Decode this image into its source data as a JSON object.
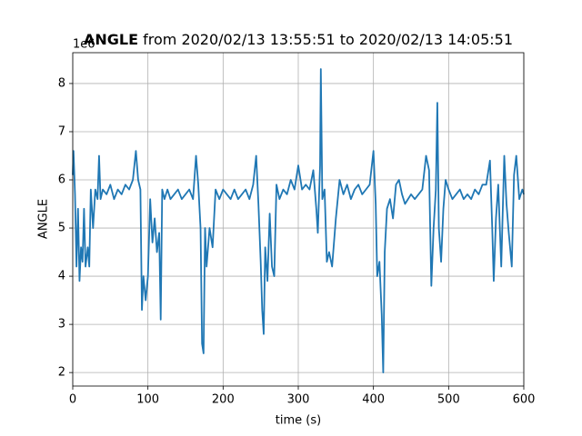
{
  "chart_data": {
    "type": "line",
    "title_bold": "ANGLE",
    "title": " from 2020/02/13 13:55:51 to 2020/02/13 14:05:51",
    "y_offset_label": "1e6",
    "xlabel": "time (s)",
    "ylabel": "ANGLE",
    "xlim": [
      0,
      600
    ],
    "ylim": [
      1.72,
      8.64
    ],
    "xticks": [
      0,
      100,
      200,
      300,
      400,
      500,
      600
    ],
    "yticks": [
      2,
      3,
      4,
      5,
      6,
      7,
      8
    ],
    "grid": true,
    "x": [
      0,
      1,
      3,
      5,
      7,
      9,
      11,
      13,
      15,
      17,
      20,
      22,
      24,
      27,
      30,
      33,
      35,
      37,
      40,
      45,
      50,
      55,
      60,
      65,
      70,
      75,
      80,
      84,
      87,
      90,
      92,
      94,
      97,
      100,
      103,
      106,
      109,
      112,
      115,
      117,
      119,
      122,
      126,
      130,
      135,
      140,
      145,
      150,
      155,
      160,
      164,
      167,
      170,
      172,
      174,
      176,
      178,
      182,
      186,
      190,
      195,
      200,
      205,
      210,
      215,
      220,
      225,
      230,
      235,
      240,
      244,
      247,
      250,
      252,
      254,
      256,
      259,
      262,
      265,
      268,
      271,
      275,
      280,
      285,
      290,
      295,
      300,
      305,
      310,
      315,
      320,
      324,
      326,
      329,
      330,
      332,
      335,
      338,
      341,
      345,
      350,
      355,
      360,
      365,
      370,
      375,
      380,
      385,
      390,
      395,
      400,
      403,
      405,
      408,
      411,
      413,
      415,
      418,
      422,
      426,
      430,
      434,
      438,
      442,
      446,
      450,
      455,
      460,
      465,
      470,
      474,
      477,
      480,
      483,
      485,
      487,
      490,
      493,
      496,
      500,
      505,
      510,
      515,
      520,
      525,
      530,
      535,
      540,
      545,
      550,
      555,
      558,
      560,
      563,
      566,
      570,
      574,
      577,
      580,
      584,
      587,
      590,
      594,
      598,
      600
    ],
    "series": [
      {
        "name": "ANGLE",
        "color": "#1f77b4",
        "values": [
          6.1,
          6.6,
          5.7,
          4.2,
          5.4,
          3.9,
          4.6,
          4.3,
          5.4,
          4.2,
          4.6,
          4.2,
          5.8,
          5.0,
          5.8,
          5.6,
          6.5,
          5.6,
          5.8,
          5.7,
          5.9,
          5.6,
          5.8,
          5.7,
          5.9,
          5.8,
          6.0,
          6.6,
          6.0,
          5.8,
          3.3,
          4.0,
          3.5,
          4.0,
          5.6,
          4.7,
          5.2,
          4.5,
          4.9,
          3.1,
          5.8,
          5.6,
          5.8,
          5.6,
          5.7,
          5.8,
          5.6,
          5.7,
          5.8,
          5.6,
          6.5,
          5.9,
          5.0,
          2.6,
          2.4,
          5.0,
          4.2,
          5.0,
          4.6,
          5.8,
          5.6,
          5.8,
          5.7,
          5.6,
          5.8,
          5.6,
          5.7,
          5.8,
          5.6,
          5.9,
          6.5,
          5.5,
          4.3,
          3.3,
          2.8,
          4.6,
          3.9,
          5.3,
          4.2,
          4.0,
          5.9,
          5.6,
          5.8,
          5.7,
          6.0,
          5.8,
          6.3,
          5.8,
          5.9,
          5.8,
          6.2,
          5.4,
          4.9,
          6.3,
          8.3,
          5.6,
          5.8,
          4.3,
          4.5,
          4.2,
          5.2,
          6.0,
          5.7,
          5.9,
          5.6,
          5.8,
          5.9,
          5.7,
          5.8,
          5.9,
          6.6,
          5.5,
          4.0,
          4.3,
          3.2,
          2.0,
          4.5,
          5.4,
          5.6,
          5.2,
          5.9,
          6.0,
          5.7,
          5.5,
          5.6,
          5.7,
          5.6,
          5.7,
          5.8,
          6.5,
          6.2,
          3.8,
          5.0,
          5.8,
          7.6,
          5.0,
          4.3,
          5.4,
          6.0,
          5.8,
          5.6,
          5.7,
          5.8,
          5.6,
          5.7,
          5.6,
          5.8,
          5.7,
          5.9,
          5.9,
          6.4,
          5.0,
          3.9,
          5.2,
          5.9,
          4.2,
          6.5,
          5.5,
          4.9,
          4.2,
          6.1,
          6.5,
          5.6,
          5.8,
          5.7
        ]
      }
    ]
  }
}
